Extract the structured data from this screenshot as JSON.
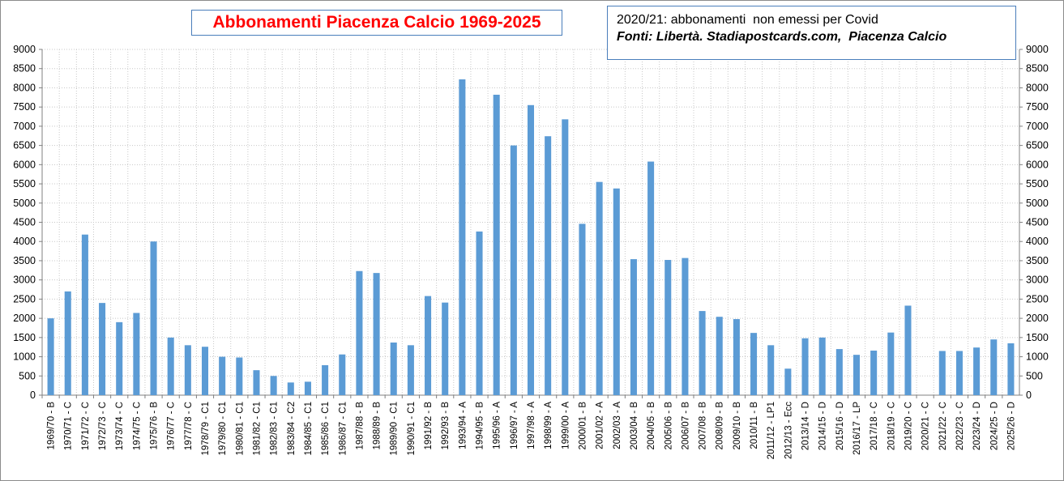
{
  "title": "Abbonamenti Piacenza Calcio 1969-2025",
  "note": {
    "line1": "2020/21: abbonamenti  non emessi per Covid",
    "line2": "Fonti: Libertà. Stadiapostcards.com,  Piacenza Calcio"
  },
  "colors": {
    "bar": "#5b9bd5",
    "grid": "#c8c8c8",
    "title": "#ff0000",
    "box_border": "#4a7ebb"
  },
  "chart_data": {
    "type": "bar",
    "title": "Abbonamenti Piacenza Calcio 1969-2025",
    "ylim": [
      0,
      9000
    ],
    "ytick_step": 500,
    "y_ticks": [
      "0",
      "500",
      "1000",
      "1500",
      "2000",
      "2500",
      "3000",
      "3500",
      "4000",
      "4500",
      "5000",
      "5500",
      "6000",
      "6500",
      "7000",
      "7500",
      "8000",
      "8500",
      "9000"
    ],
    "grid": true,
    "secondary_y_axis": true,
    "categories": [
      "1969/70 - B",
      "1970/71 - C",
      "1971/72 - C",
      "1972/73 - C",
      "1973/74 - C",
      "1974/75 - C",
      "1975/76 - B",
      "1976/77 - C",
      "1977/78 - C",
      "1978/79 - C1",
      "1979/80 - C1",
      "1980/81 - C1",
      "1981/82 - C1",
      "1982/83 - C1",
      "1983/84 - C2",
      "1984/85 - C1",
      "1985/86 - C1",
      "1986/87 - C1",
      "1987/88 - B",
      "1988/89 - B",
      "1989/90 - C1",
      "1990/91 - C1",
      "1991/92 - B",
      "1992/93 - B",
      "1993/94 - A",
      "1994/95 - B",
      "1995/96 - A",
      "1996/97 - A",
      "1997/98 - A",
      "1998/99 - A",
      "1999/00 - A",
      "2000/01 - B",
      "2001/02 - A",
      "2002/03 - A",
      "2003/04 - B",
      "2004/05 - B",
      "2005/06 - B",
      "2006/07 - B",
      "2007/08 - B",
      "2008/09 - B",
      "2009/10 - B",
      "2010/11 - B",
      "2011/12 - LP1",
      "2012/13 - Ecc",
      "2013/14 - D",
      "2014/15 - D",
      "2015/16 - D",
      "2016/17 - LP",
      "2017/18 - C",
      "2018/19 - C",
      "2019/20 - C",
      "2020/21 - C",
      "2021/22 - C",
      "2022/23 - C",
      "2023/24 - D",
      "2024/25 - D",
      "2025/26 - D"
    ],
    "values": [
      2000,
      2700,
      4180,
      2400,
      1900,
      2140,
      4000,
      1500,
      1300,
      1260,
      1000,
      980,
      650,
      500,
      330,
      350,
      780,
      1060,
      3230,
      3180,
      1370,
      1300,
      2580,
      2410,
      8220,
      4260,
      7820,
      6500,
      7550,
      6740,
      7180,
      4460,
      5550,
      5380,
      3540,
      6080,
      3520,
      3570,
      2190,
      2040,
      1980,
      1620,
      1300,
      690,
      1480,
      1500,
      1200,
      1050,
      1160,
      1630,
      2330,
      0,
      1150,
      1150,
      1240,
      1450,
      1350
    ]
  }
}
